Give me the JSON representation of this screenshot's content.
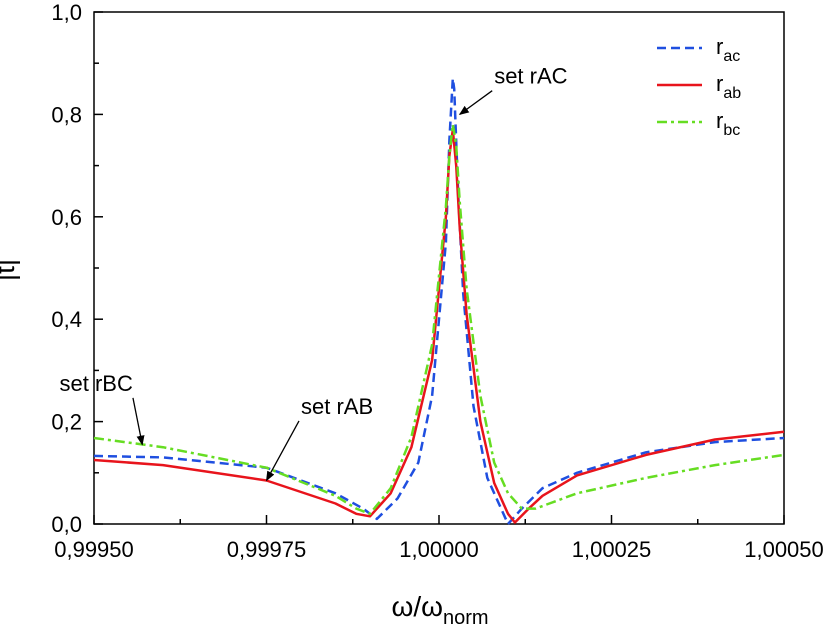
{
  "chart_data": {
    "type": "line",
    "title": "",
    "xlabel": "ω/ω",
    "xlabel_sub": "norm",
    "ylabel": "|t|",
    "xlim": [
      0.9995,
      1.0005
    ],
    "ylim": [
      0.0,
      1.0
    ],
    "x_ticks": [
      0.9995,
      0.99975,
      1.0,
      1.00025,
      1.0005
    ],
    "x_tick_labels": [
      "0,99950",
      "0,99975",
      "1,00000",
      "1,00025",
      "1,00050"
    ],
    "y_ticks": [
      0.0,
      0.2,
      0.4,
      0.6,
      0.8,
      1.0
    ],
    "y_tick_labels": [
      "0,0",
      "0,2",
      "0,4",
      "0,6",
      "0,8",
      "1,0"
    ],
    "grid": false,
    "legend_position": "top-right",
    "series": [
      {
        "name": "r",
        "sub": "ac",
        "color": "#1f4fe0",
        "dash": "dashed",
        "x": [
          0.9995,
          0.9996,
          0.99975,
          0.99985,
          0.99989,
          0.99991,
          0.99994,
          0.99997,
          0.99999,
          1.00001,
          1.000015,
          1.00002,
          1.000022,
          1.000028,
          1.000035,
          1.00005,
          1.00007,
          1.00009,
          1.0001,
          1.00012,
          1.00015,
          1.0002,
          1.0003,
          1.0004,
          1.0005
        ],
        "y": [
          0.133,
          0.13,
          0.11,
          0.06,
          0.03,
          0.01,
          0.05,
          0.12,
          0.25,
          0.55,
          0.75,
          0.87,
          0.85,
          0.64,
          0.45,
          0.23,
          0.09,
          0.03,
          0.0,
          0.03,
          0.07,
          0.1,
          0.14,
          0.16,
          0.168
        ]
      },
      {
        "name": "r",
        "sub": "ab",
        "color": "#e8141c",
        "dash": "solid",
        "x": [
          0.9995,
          0.9996,
          0.99975,
          0.99985,
          0.99988,
          0.9999,
          0.99993,
          0.99996,
          0.99999,
          1.00001,
          1.000015,
          1.00002,
          1.000025,
          1.00003,
          1.00004,
          1.00006,
          1.00008,
          1.0001,
          1.00011,
          1.00013,
          1.00015,
          1.0002,
          1.0003,
          1.0004,
          1.0005
        ],
        "y": [
          0.125,
          0.115,
          0.085,
          0.04,
          0.02,
          0.015,
          0.06,
          0.15,
          0.32,
          0.6,
          0.72,
          0.77,
          0.7,
          0.58,
          0.41,
          0.2,
          0.08,
          0.02,
          0.003,
          0.03,
          0.055,
          0.095,
          0.135,
          0.165,
          0.18
        ]
      },
      {
        "name": "r",
        "sub": "bc",
        "color": "#66dd22",
        "dash": "dashdot",
        "x": [
          0.9995,
          0.9996,
          0.99975,
          0.99985,
          0.99988,
          0.9999,
          0.99993,
          0.99996,
          0.99999,
          1.00001,
          1.000015,
          1.00002,
          1.000025,
          1.00003,
          1.00004,
          1.00006,
          1.00008,
          1.0001,
          1.00012,
          1.00014,
          1.00016,
          1.0002,
          1.0003,
          1.0004,
          1.0005
        ],
        "y": [
          0.168,
          0.15,
          0.11,
          0.055,
          0.03,
          0.02,
          0.07,
          0.17,
          0.35,
          0.62,
          0.72,
          0.78,
          0.74,
          0.63,
          0.46,
          0.25,
          0.12,
          0.06,
          0.03,
          0.03,
          0.04,
          0.06,
          0.09,
          0.115,
          0.135
        ]
      }
    ],
    "annotations": [
      {
        "text": "set rAC",
        "label_x": 1.00008,
        "label_y": 0.86,
        "arrow_x": 1.00003,
        "arrow_y": 0.8
      },
      {
        "text": "set rAB",
        "label_x": 0.9998,
        "label_y": 0.215,
        "arrow_x": 0.99975,
        "arrow_y": 0.085
      },
      {
        "text": "set rBC",
        "label_x": 0.99945,
        "label_y": 0.26,
        "arrow_x": 0.99957,
        "arrow_y": 0.155
      }
    ]
  }
}
